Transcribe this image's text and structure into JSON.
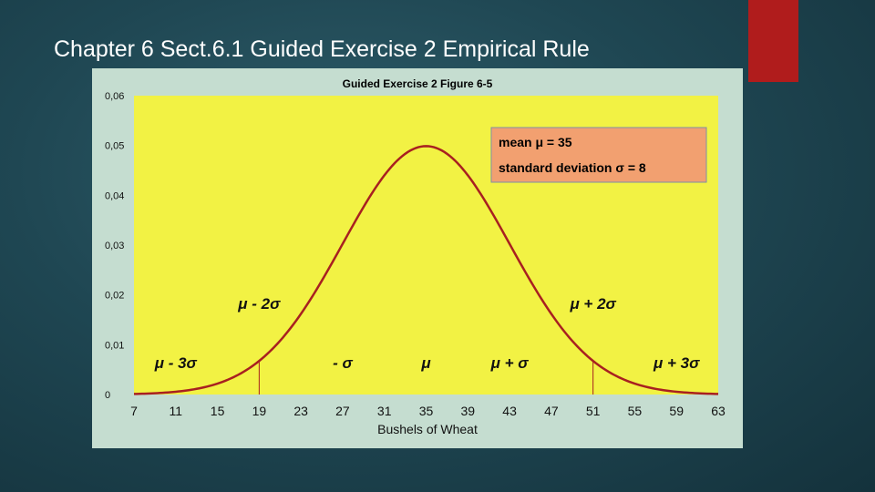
{
  "slide": {
    "title": "Chapter 6 Sect.6.1 Guided Exercise 2 Empirical Rule"
  },
  "colors": {
    "background": "#1f4753",
    "accent": "#b01c1c",
    "panel": "#c5ddd0",
    "plot_area": "#f2f244",
    "curve": "#a82020",
    "info_box": "#f2a070"
  },
  "chart_data": {
    "type": "line",
    "title": "Guided Exercise 2 Figure 6-5",
    "xlabel": "Bushels of Wheat",
    "ylabel": "",
    "xlim": [
      7,
      63
    ],
    "ylim": [
      0,
      0.06
    ],
    "x_ticks": [
      "7",
      "11",
      "15",
      "19",
      "23",
      "27",
      "31",
      "35",
      "39",
      "43",
      "47",
      "51",
      "55",
      "59",
      "63"
    ],
    "y_ticks": [
      "0",
      "0,01",
      "0,02",
      "0,03",
      "0,04",
      "0,05",
      "0,06"
    ],
    "grid": false,
    "series": [
      {
        "distribution": "normal",
        "mean": 35,
        "std": 8,
        "x_start": 7,
        "x_end": 63
      }
    ],
    "reference_lines": [
      {
        "x": 19,
        "label": "μ - 2σ"
      },
      {
        "x": 51,
        "label": "μ + 2σ"
      }
    ],
    "annotations": [
      {
        "text": "μ - 3σ",
        "x": 11
      },
      {
        "text": "- σ",
        "x": 27
      },
      {
        "text": "μ",
        "x": 35
      },
      {
        "text": "μ + σ",
        "x": 43
      },
      {
        "text": "μ + 3σ",
        "x": 59
      }
    ],
    "info_box": {
      "line1": "mean μ = 35",
      "line2": "standard deviation σ = 8"
    }
  }
}
